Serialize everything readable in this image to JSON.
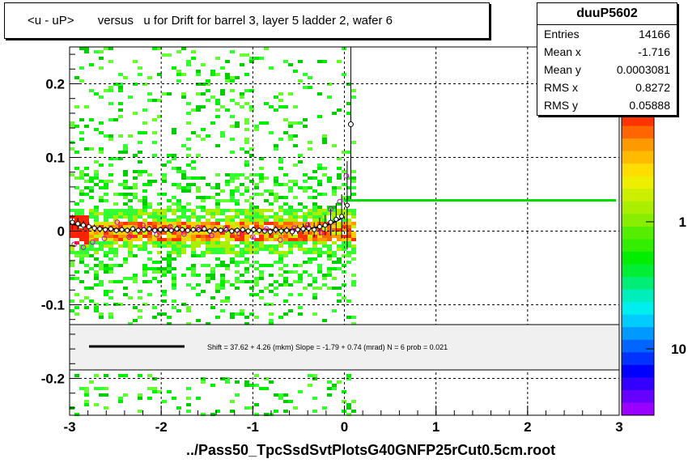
{
  "title": "<u - uP>       versus   u for Drift for barrel 3, layer 5 ladder 2, wafer 6",
  "footer": "../Pass50_TpcSsdSvtPlotsG40GNFP25rCut0.5cm.root",
  "stats": {
    "name": "duuP5602",
    "rows": [
      {
        "label": "Entries",
        "value": "14166"
      },
      {
        "label": "Mean x",
        "value": "-1.716"
      },
      {
        "label": "Mean y",
        "value": "0.0003081"
      },
      {
        "label": "RMS x",
        "value": "0.8272"
      },
      {
        "label": "RMS y",
        "value": "0.05888"
      }
    ]
  },
  "fit_legend": "Shift =    37.62 + 4.26 (mkm) Slope =    -1.79 + 0.74 (mrad)  N = 6 prob = 0.021",
  "colors": {
    "profile_marker": "#000000",
    "alt_marker": "#cc00cc",
    "fit_line": "#000000",
    "shift_line": "#00dd00",
    "legend_bg": "#f0f0f0",
    "grid": "#000000"
  },
  "chart_data": {
    "type": "heatmap",
    "xlim": [
      -3,
      3
    ],
    "ylim": [
      -0.25,
      0.25
    ],
    "xticks": [
      -3,
      -2,
      -1,
      0,
      1,
      2,
      3
    ],
    "yticks": [
      -0.2,
      -0.1,
      0,
      0.1,
      0.2
    ],
    "grid": true,
    "log_z": true,
    "colorbar_ticks": [
      "1",
      "10"
    ],
    "shift_line_y": 0.0418,
    "profile": {
      "x": [
        -2.97,
        -2.91,
        -2.85,
        -2.79,
        -2.73,
        -2.67,
        -2.61,
        -2.55,
        -2.49,
        -2.43,
        -2.37,
        -2.31,
        -2.25,
        -2.19,
        -2.13,
        -2.07,
        -2.01,
        -1.95,
        -1.89,
        -1.83,
        -1.77,
        -1.71,
        -1.65,
        -1.59,
        -1.53,
        -1.47,
        -1.41,
        -1.35,
        -1.29,
        -1.23,
        -1.17,
        -1.11,
        -1.05,
        -0.99,
        -0.93,
        -0.87,
        -0.81,
        -0.75,
        -0.69,
        -0.63,
        -0.57,
        -0.51,
        -0.45,
        -0.39,
        -0.33,
        -0.27,
        -0.21,
        -0.15,
        -0.09,
        -0.03,
        0.03
      ],
      "y": [
        0.012,
        0.01,
        0.008,
        0.006,
        0.004,
        0.003,
        0.002,
        0.003,
        0.001,
        0.002,
        0.001,
        0.003,
        0.001,
        0.002,
        0.003,
        0.001,
        0.002,
        0.002,
        0.001,
        0.003,
        0.002,
        0.001,
        0.002,
        0.002,
        0.003,
        0.0,
        0.002,
        0.001,
        0.002,
        0.0,
        0.001,
        0.002,
        0.0,
        0.002,
        0.001,
        0.0,
        -0.001,
        0.002,
        0.0,
        0.001,
        -0.001,
        0.002,
        0.003,
        0.004,
        0.002,
        0.006,
        0.008,
        0.012,
        0.016,
        0.02,
        0.035
      ],
      "yerr": [
        0.01,
        0.008,
        0.006,
        0.006,
        0.005,
        0.005,
        0.004,
        0.004,
        0.004,
        0.004,
        0.004,
        0.004,
        0.004,
        0.004,
        0.004,
        0.004,
        0.004,
        0.004,
        0.004,
        0.004,
        0.004,
        0.004,
        0.004,
        0.004,
        0.004,
        0.004,
        0.004,
        0.004,
        0.004,
        0.004,
        0.004,
        0.004,
        0.004,
        0.004,
        0.004,
        0.004,
        0.005,
        0.005,
        0.005,
        0.005,
        0.006,
        0.006,
        0.007,
        0.008,
        0.01,
        0.012,
        0.014,
        0.018,
        0.022,
        0.03,
        0.06
      ]
    },
    "alt_points": {
      "x": [
        -2.95,
        -2.85,
        -2.75,
        -2.62,
        -2.48,
        -2.35,
        -2.2,
        -2.05,
        -1.9,
        -1.75,
        -1.6,
        -1.45,
        -1.3,
        -1.15,
        -1.0,
        -0.85,
        -0.7,
        -0.55,
        -0.4,
        -0.25,
        -0.15,
        -0.05,
        0.02
      ],
      "y": [
        -0.018,
        -0.022,
        -0.015,
        -0.01,
        0.012,
        -0.008,
        0.008,
        -0.005,
        0.006,
        -0.004,
        0.005,
        -0.006,
        0.004,
        -0.003,
        -0.008,
        0.003,
        -0.012,
        0.004,
        0.008,
        -0.002,
        0.03,
        0.04,
        0.075
      ]
    },
    "extra_points": {
      "x": [
        0.07
      ],
      "y": [
        0.145
      ],
      "yerr": [
        0.09
      ]
    },
    "fit_line": {
      "x": [
        -3.0,
        -2.7,
        -2.4,
        -2.0,
        -1.5,
        -1.0,
        -0.6,
        -0.4,
        -0.25,
        -0.15,
        -0.05,
        0.0
      ],
      "y": [
        0.01,
        0.004,
        0.002,
        0.002,
        0.001,
        0.001,
        0.002,
        0.003,
        0.006,
        0.01,
        0.016,
        0.02
      ]
    }
  }
}
